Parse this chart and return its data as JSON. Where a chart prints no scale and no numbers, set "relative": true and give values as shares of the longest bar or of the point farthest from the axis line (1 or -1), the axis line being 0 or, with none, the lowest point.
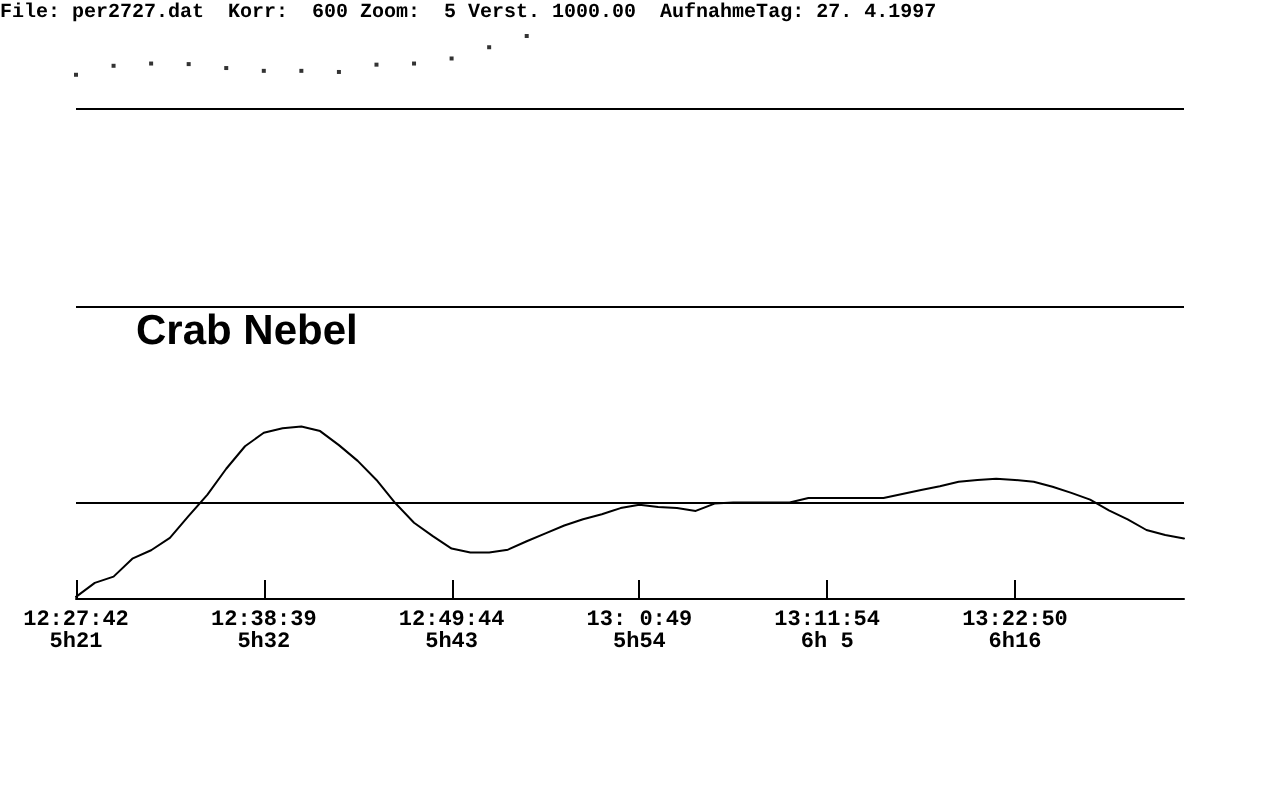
{
  "chart_data": {
    "type": "line",
    "title": "Crab Nebel",
    "annotations": [
      "File: per2727.dat  Korr:  600 Zoom:  5 Verst. 1000.00  AufnahmeTag: 27. 4.1997"
    ],
    "relative": true,
    "categories": [
      "12:27:42\n5h21",
      null,
      null,
      null,
      null,
      null,
      null,
      null,
      null,
      null,
      "12:38:39\n5h32",
      null,
      null,
      null,
      null,
      null,
      null,
      null,
      null,
      null,
      "12:49:44\n5h43",
      null,
      null,
      null,
      null,
      null,
      null,
      null,
      null,
      null,
      "13: 0:49\n5h54",
      null,
      null,
      null,
      null,
      null,
      null,
      null,
      null,
      null,
      "13:11:54\n6h 5",
      null,
      null,
      null,
      null,
      null,
      null,
      null,
      null,
      null,
      "13:22:50\n6h16",
      null,
      null,
      null,
      null,
      null,
      null,
      null,
      null,
      null
    ],
    "ref_lines": [
      {
        "axis": "y",
        "value": 0.174
      },
      {
        "axis": "y",
        "value": 0.521
      },
      {
        "axis": "y",
        "value": 0.868
      }
    ],
    "tick_labels": "x",
    "marker": "none",
    "series": [
      {
        "color": "#000000",
        "values": [
          0.002,
          0.027,
          0.038,
          0.07,
          0.085,
          0.107,
          0.146,
          0.184,
          0.23,
          0.27,
          0.294,
          0.302,
          0.305,
          0.297,
          0.272,
          0.244,
          0.21,
          0.169,
          0.134,
          0.11,
          0.088,
          0.081,
          0.081,
          0.086,
          0.101,
          0.115,
          0.129,
          0.14,
          0.149,
          0.16,
          0.166,
          0.162,
          0.16,
          0.155,
          0.168,
          0.17,
          0.17,
          0.17,
          0.17,
          0.178,
          0.178,
          0.178,
          0.178,
          0.178,
          0.185,
          0.192,
          0.199,
          0.207,
          0.21,
          0.212,
          0.21,
          0.207,
          0.198,
          0.187,
          0.175,
          0.156,
          0.14,
          0.121,
          0.112,
          0.106
        ]
      },
      {
        "type": "scatter",
        "marker": "square",
        "color": "#000000",
        "values": [
          0.931,
          null,
          0.947,
          null,
          0.951,
          null,
          0.95,
          null,
          0.943,
          null,
          0.938,
          null,
          0.938,
          null,
          0.936,
          null,
          0.949,
          null,
          0.951,
          null,
          0.96,
          null,
          0.98,
          null,
          1,
          null,
          null,
          null,
          null,
          null,
          null,
          null,
          null,
          null,
          null,
          null,
          null,
          null,
          null,
          null,
          null,
          null,
          null,
          null,
          null,
          null,
          null,
          null,
          null,
          null,
          null,
          null,
          null,
          null,
          null,
          null,
          null,
          null,
          null,
          null
        ]
      }
    ]
  }
}
